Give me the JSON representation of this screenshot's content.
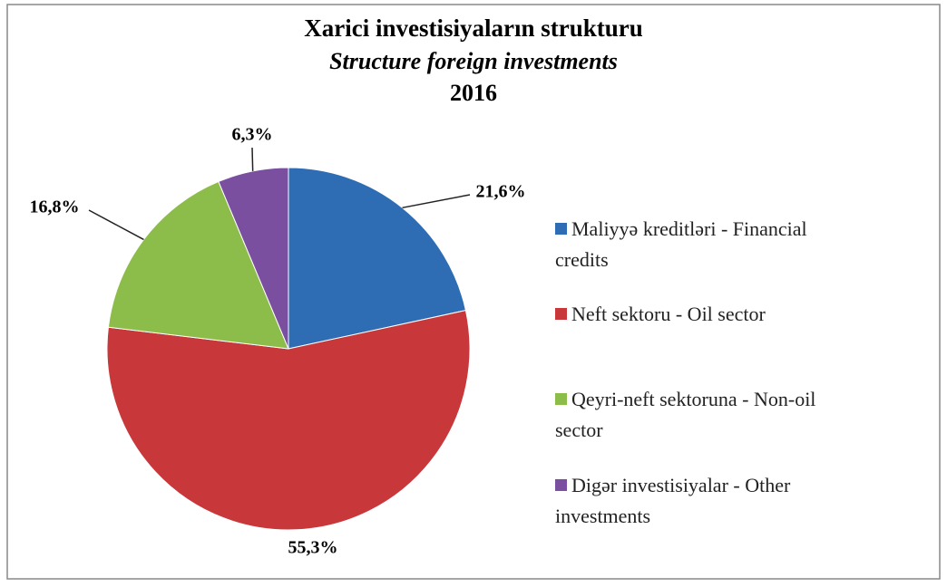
{
  "chart_data": {
    "type": "pie",
    "title": "Xarici investisiyaların strukturu",
    "subtitle": "Structure foreign investments",
    "period": "2016",
    "categories": [
      "Maliyyə kreditləri - Financial credits",
      "Neft sektoru  - Oil sector",
      "Qeyri-neft sektoruna - Non-oil sector",
      "Digər investisiyalar - Other investments"
    ],
    "values": [
      21.6,
      55.3,
      16.8,
      6.3
    ],
    "value_labels": [
      "21,6%",
      "55,3%",
      "16,8%",
      "6,3%"
    ],
    "colors": [
      "#2e6db4",
      "#c8373a",
      "#8cbd4a",
      "#7b4fa0"
    ],
    "legend": "right"
  }
}
